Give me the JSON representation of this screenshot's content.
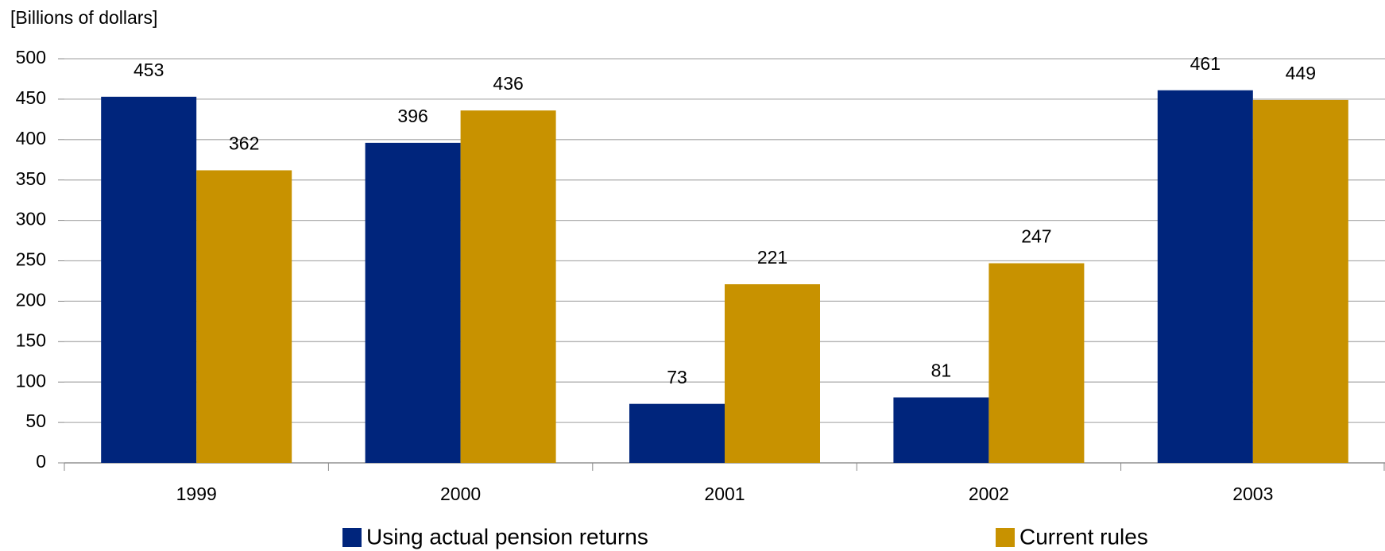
{
  "chart_data": {
    "type": "bar",
    "y_axis_label": "[Billions of dollars]",
    "categories": [
      "1999",
      "2000",
      "2001",
      "2002",
      "2003"
    ],
    "series": [
      {
        "name": "Using actual pension returns",
        "color": "#00257c",
        "values": [
          453,
          396,
          73,
          81,
          461
        ]
      },
      {
        "name": "Current rules",
        "color": "#c89200",
        "values": [
          362,
          436,
          221,
          247,
          449
        ]
      }
    ],
    "ylim": [
      0,
      500
    ],
    "yticks": [
      0,
      50,
      100,
      150,
      200,
      250,
      300,
      350,
      400,
      450,
      500
    ],
    "grid": true,
    "legend": "bottom"
  }
}
